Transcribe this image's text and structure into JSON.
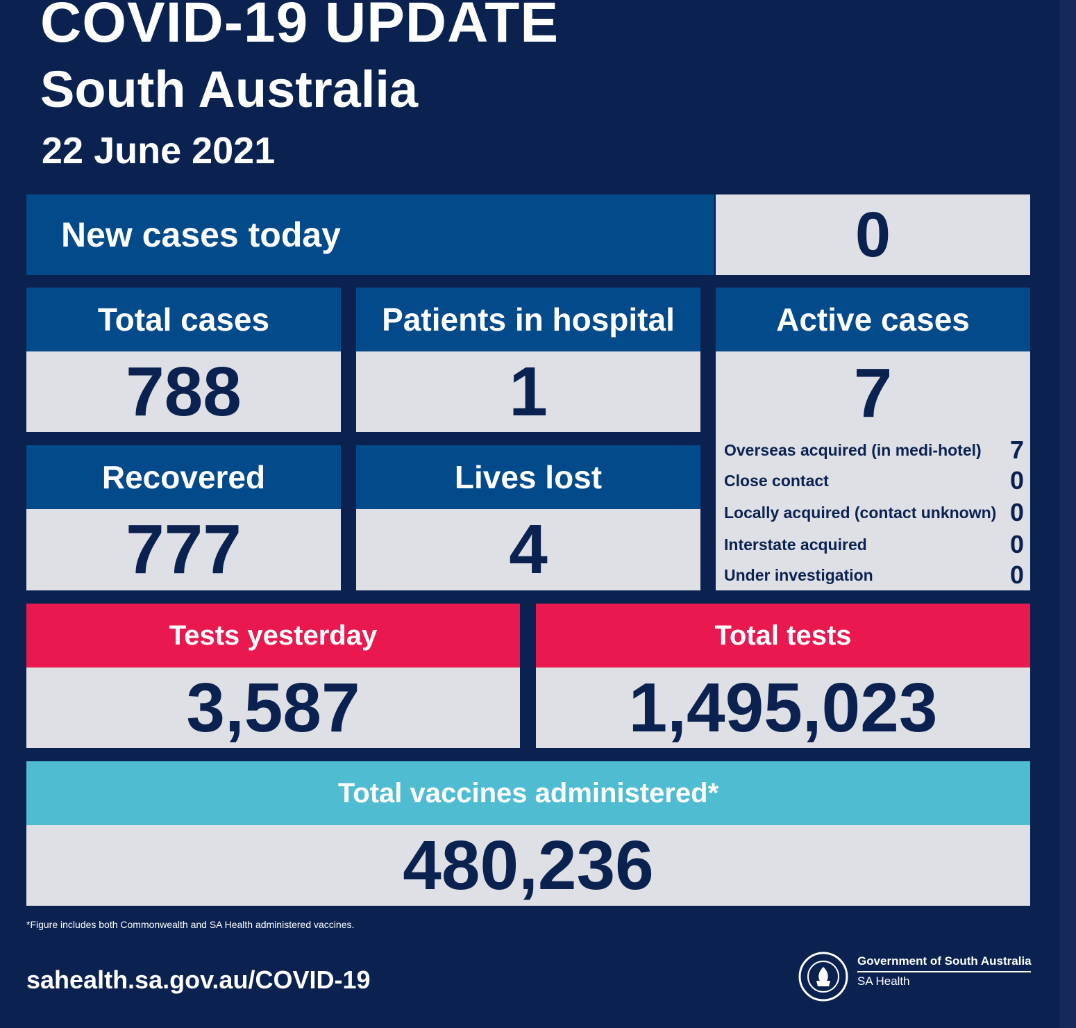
{
  "header": {
    "title": "COVID-19 UPDATE",
    "region": "South Australia",
    "date": "22 June 2021"
  },
  "new_cases": {
    "label": "New cases today",
    "value": "0"
  },
  "total_cases": {
    "label": "Total cases",
    "value": "788"
  },
  "hospital": {
    "label": "Patients in hospital",
    "value": "1"
  },
  "active": {
    "label": "Active cases",
    "value": "7",
    "breakdown": [
      {
        "label": "Overseas acquired (in medi-hotel)",
        "value": "7"
      },
      {
        "label": "Close contact",
        "value": "0"
      },
      {
        "label": "Locally acquired (contact unknown)",
        "value": "0"
      },
      {
        "label": "Interstate acquired",
        "value": "0"
      },
      {
        "label": "Under investigation",
        "value": "0"
      }
    ]
  },
  "recovered": {
    "label": "Recovered",
    "value": "777"
  },
  "lives_lost": {
    "label": "Lives lost",
    "value": "4"
  },
  "tests_yesterday": {
    "label": "Tests yesterday",
    "value": "3,587"
  },
  "total_tests": {
    "label": "Total tests",
    "value": "1,495,023"
  },
  "vaccines": {
    "label": "Total vaccines administered*",
    "value": "480,236"
  },
  "footnote": "*Figure includes both Commonwealth and SA Health administered vaccines.",
  "url": "sahealth.sa.gov.au/COVID-19",
  "government": {
    "name": "Government of South Australia",
    "department": "SA Health"
  },
  "colors": {
    "background": "#0b2250",
    "header_blue": "#034a8a",
    "value_grey": "#dfe0e6",
    "tests_red": "#e9194f",
    "vaccine_teal": "#4fbcd1"
  }
}
